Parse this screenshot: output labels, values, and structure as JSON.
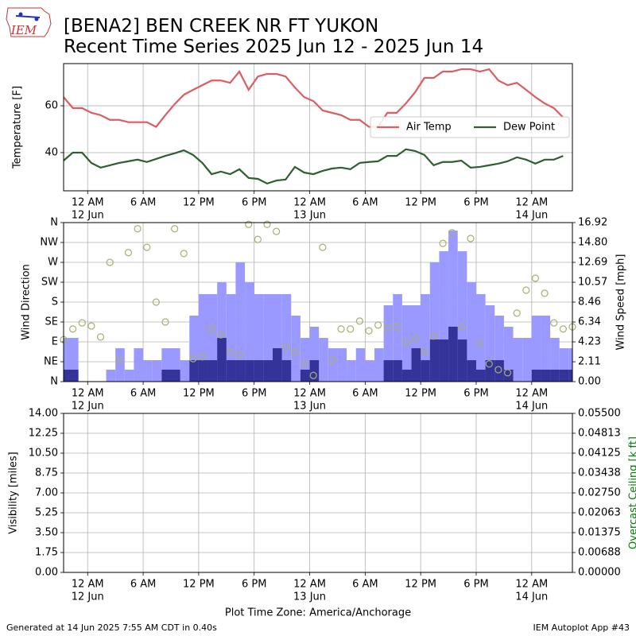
{
  "header": {
    "logo_text": "IEM",
    "title": "[BENA2] BEN CREEK NR FT YUKON",
    "subtitle": "Recent Time Series 2025 Jun 12 - 2025 Jun 14"
  },
  "chart_data": [
    {
      "type": "line",
      "ylabel": "Temperature [F]",
      "xlim": [
        -2.6,
        52.4
      ],
      "xticks": [
        {
          "value": 0,
          "label": "12 AM"
        },
        {
          "value": 6,
          "label": "6 AM"
        },
        {
          "value": 12,
          "label": "12 PM"
        },
        {
          "value": 18,
          "label": "6 PM"
        },
        {
          "value": 24,
          "label": "12 AM"
        },
        {
          "value": 30,
          "label": "6 AM"
        },
        {
          "value": 36,
          "label": "12 PM"
        },
        {
          "value": 42,
          "label": "6 PM"
        },
        {
          "value": 48,
          "label": "12 AM"
        }
      ],
      "xdate_ticks": [
        {
          "value": 0,
          "label": "12 Jun"
        },
        {
          "value": 24,
          "label": "13 Jun"
        },
        {
          "value": 48,
          "label": "14 Jun"
        }
      ],
      "ylim": [
        23.7,
        78
      ],
      "yticks": [
        40,
        60
      ],
      "grid": true,
      "legend": "center right",
      "x": [
        -2.6,
        -1.6,
        -0.6,
        0.4,
        1.4,
        2.4,
        3.4,
        4.4,
        5.4,
        6.4,
        7.4,
        8.4,
        9.4,
        10.4,
        11.4,
        12.4,
        13.4,
        14.4,
        15.4,
        16.4,
        17.4,
        18.4,
        19.4,
        20.4,
        21.4,
        22.4,
        23.4,
        24.4,
        25.4,
        26.4,
        27.4,
        28.4,
        29.4,
        30.4,
        31.4,
        32.4,
        33.4,
        34.4,
        35.4,
        36.4,
        37.4,
        38.4,
        39.4,
        40.4,
        41.4,
        42.4,
        43.4,
        44.4,
        45.4,
        46.4,
        47.4,
        48.4,
        49.4,
        50.4,
        51.4
      ],
      "series": [
        {
          "name": "Air Temp",
          "color": "#dc5c62",
          "values": [
            63.7,
            59,
            59,
            57,
            56,
            54,
            54,
            53,
            53,
            53,
            51,
            56,
            60.7,
            64.7,
            66.8,
            68.8,
            70.8,
            70.8,
            69.8,
            74.6,
            66.8,
            72.5,
            73.6,
            73.6,
            72.5,
            67.8,
            63.7,
            62,
            58,
            57,
            56,
            54,
            54,
            51,
            51,
            57,
            57,
            61,
            65.8,
            71.9,
            71.9,
            74.6,
            74.6,
            75.6,
            75.6,
            74.6,
            75.6,
            70.8,
            68.8,
            69.8,
            66.8,
            63.7,
            61,
            59,
            55
          ]
        },
        {
          "name": "Dew Point",
          "color": "#2f5f2f",
          "values": [
            36.6,
            40,
            40,
            35.6,
            33.6,
            34.6,
            35.6,
            36.3,
            37,
            36,
            37.3,
            38.6,
            39.7,
            41,
            39,
            35.6,
            30.8,
            31.9,
            30.8,
            32.9,
            29.2,
            28.8,
            26.8,
            28.1,
            28.5,
            33.9,
            31.5,
            30.8,
            32.2,
            33.2,
            33.6,
            32.9,
            35.6,
            36,
            36.3,
            38.6,
            38.6,
            41.4,
            40.7,
            39,
            34.6,
            36,
            36,
            36.6,
            33.6,
            33.9,
            34.6,
            35.3,
            36.3,
            38,
            37,
            35.3,
            37,
            37,
            38.6
          ]
        }
      ]
    },
    {
      "type": "combo",
      "ylabel": "Wind Direction",
      "y2label": "Wind Speed [mph]",
      "xlim": [
        -2.6,
        52.4
      ],
      "xticks": [
        {
          "value": 0,
          "label": "12 AM"
        },
        {
          "value": 6,
          "label": "6 AM"
        },
        {
          "value": 12,
          "label": "12 PM"
        },
        {
          "value": 18,
          "label": "6 PM"
        },
        {
          "value": 24,
          "label": "12 AM"
        },
        {
          "value": 30,
          "label": "6 AM"
        },
        {
          "value": 36,
          "label": "12 PM"
        },
        {
          "value": 42,
          "label": "6 PM"
        },
        {
          "value": 48,
          "label": "12 AM"
        }
      ],
      "xdate_ticks": [
        {
          "value": 0,
          "label": "12 Jun"
        },
        {
          "value": 24,
          "label": "13 Jun"
        },
        {
          "value": 48,
          "label": "14 Jun"
        }
      ],
      "ylim": [
        0,
        360
      ],
      "yticks": [
        {
          "value": 0,
          "label": "N"
        },
        {
          "value": 45,
          "label": "NE"
        },
        {
          "value": 90,
          "label": "E"
        },
        {
          "value": 135,
          "label": "SE"
        },
        {
          "value": 180,
          "label": "S"
        },
        {
          "value": 225,
          "label": "SW"
        },
        {
          "value": 270,
          "label": "W"
        },
        {
          "value": 315,
          "label": "NW"
        },
        {
          "value": 360,
          "label": "N"
        }
      ],
      "y2lim": [
        0,
        16.92
      ],
      "y2ticks": [
        {
          "value": 0,
          "label": "0.00"
        },
        2.11,
        4.23,
        6.34,
        8.46,
        10.57,
        12.69,
        {
          "value": 14.8,
          "label": "14.80"
        },
        16.92
      ],
      "grid": true,
      "series": [
        {
          "type": "bar",
          "axis": "y2",
          "color": "#9999ff",
          "x": [
            -3,
            -2,
            -1,
            0,
            1,
            2,
            3,
            4,
            5,
            6,
            7,
            8,
            9,
            10,
            11,
            12,
            13,
            14,
            15,
            16,
            17,
            18,
            19,
            20,
            21,
            22,
            23,
            24,
            25,
            26,
            27,
            28,
            29,
            30,
            31,
            32,
            33,
            34,
            35,
            36,
            37,
            38,
            39,
            40,
            41,
            42,
            43,
            44,
            45,
            46,
            47,
            48,
            49,
            50,
            51,
            52
          ],
          "values": [
            4.65,
            4.65,
            0,
            0,
            0,
            1.27,
            3.55,
            1.27,
            3.55,
            2.28,
            2.28,
            3.55,
            3.55,
            2.28,
            7.02,
            9.31,
            9.31,
            10.57,
            9.31,
            12.69,
            10.57,
            9.31,
            9.31,
            9.31,
            9.31,
            7.02,
            4.65,
            5.84,
            4.65,
            3.55,
            3.55,
            2.28,
            3.55,
            2.28,
            3.55,
            8.12,
            9.31,
            8.12,
            8.12,
            9.31,
            12.69,
            13.87,
            16.07,
            13.87,
            10.57,
            9.31,
            8.12,
            7.02,
            5.84,
            4.65,
            4.65,
            7.02,
            7.02,
            4.65,
            3.55,
            3.55
          ]
        },
        {
          "type": "bar",
          "axis": "y2",
          "color": "#333399",
          "x": [
            -3,
            -2,
            -1,
            0,
            1,
            2,
            3,
            4,
            5,
            6,
            7,
            8,
            9,
            10,
            11,
            12,
            13,
            14,
            15,
            16,
            17,
            18,
            19,
            20,
            21,
            22,
            23,
            24,
            25,
            26,
            27,
            28,
            29,
            30,
            31,
            32,
            33,
            34,
            35,
            36,
            37,
            38,
            39,
            40,
            41,
            42,
            43,
            44,
            45,
            46,
            47,
            48,
            49,
            50,
            51,
            52
          ],
          "values": [
            1.27,
            1.27,
            0,
            0,
            0,
            0,
            0,
            0,
            0,
            0,
            0,
            1.27,
            1.27,
            0,
            2.28,
            2.28,
            2.28,
            4.65,
            2.28,
            2.28,
            2.28,
            2.28,
            2.28,
            3.55,
            2.28,
            0,
            1.27,
            2.28,
            0,
            0,
            0,
            0,
            0,
            0,
            0,
            2.28,
            2.28,
            1.27,
            3.55,
            2.28,
            4.48,
            4.48,
            5.84,
            4.48,
            2.28,
            1.27,
            2.28,
            2.28,
            1.27,
            0,
            0,
            1.27,
            1.27,
            1.27,
            1.27,
            1.27
          ]
        },
        {
          "type": "scatter",
          "color": "#a9ae6e",
          "x": [
            -2.6,
            -1.6,
            -0.6,
            0.4,
            1.4,
            2.4,
            3.4,
            4.4,
            5.4,
            6.4,
            7.4,
            8.4,
            9.4,
            10.4,
            11.4,
            12.4,
            13.4,
            14.4,
            15.4,
            16.4,
            17.4,
            18.4,
            19.4,
            20.4,
            21.4,
            22.4,
            23.4,
            24.4,
            25.4,
            26.4,
            27.4,
            28.4,
            29.4,
            30.4,
            31.4,
            32.4,
            33.4,
            34.4,
            35.4,
            36.4,
            37.4,
            38.4,
            39.4,
            40.4,
            41.4,
            42.4,
            43.4,
            44.4,
            45.4,
            46.4,
            47.4,
            48.4,
            49.4,
            50.4,
            51.4,
            52.4
          ],
          "values": [
            95,
            119,
            133,
            126,
            101,
            270,
            49,
            292,
            346,
            304,
            180,
            135,
            346,
            290,
            52,
            56,
            119,
            106,
            68,
            61,
            356,
            322,
            356,
            340,
            79,
            67,
            40,
            14,
            304,
            49,
            119,
            119,
            137,
            115,
            128,
            122,
            124,
            90,
            97,
            68,
            103,
            313,
            337,
            124,
            324,
            86,
            40,
            27,
            20,
            155,
            207,
            234,
            200,
            133,
            119,
            124
          ]
        }
      ]
    },
    {
      "type": "line",
      "ylabel": "Visibility [miles]",
      "y2label": "Overcast Ceiling [k ft]",
      "y2label_color": "green",
      "xlabel": "Plot Time Zone: America/Anchorage",
      "xlim": [
        -2.6,
        52.4
      ],
      "xticks": [
        {
          "value": 0,
          "label": "12 AM"
        },
        {
          "value": 6,
          "label": "6 AM"
        },
        {
          "value": 12,
          "label": "12 PM"
        },
        {
          "value": 18,
          "label": "6 PM"
        },
        {
          "value": 24,
          "label": "12 AM"
        },
        {
          "value": 30,
          "label": "6 AM"
        },
        {
          "value": 36,
          "label": "12 PM"
        },
        {
          "value": 42,
          "label": "6 PM"
        },
        {
          "value": 48,
          "label": "12 AM"
        }
      ],
      "xdate_ticks": [
        {
          "value": 0,
          "label": "12 Jun"
        },
        {
          "value": 24,
          "label": "13 Jun"
        },
        {
          "value": 48,
          "label": "14 Jun"
        }
      ],
      "ylim": [
        0,
        14
      ],
      "yticks": [
        {
          "value": 0,
          "label": "0.00"
        },
        {
          "value": 1.75,
          "label": "1.75"
        },
        {
          "value": 3.5,
          "label": "3.50"
        },
        {
          "value": 5.25,
          "label": "5.25"
        },
        {
          "value": 7,
          "label": "7.00"
        },
        {
          "value": 8.75,
          "label": "8.75"
        },
        {
          "value": 10.5,
          "label": "10.50"
        },
        {
          "value": 12.25,
          "label": "12.25"
        },
        {
          "value": 14,
          "label": "14.00"
        }
      ],
      "y2lim": [
        0,
        0.055
      ],
      "y2ticks": [
        {
          "value": 0,
          "label": "0.00000"
        },
        {
          "value": 0.00688,
          "label": "0.00688"
        },
        {
          "value": 0.01375,
          "label": "0.01375"
        },
        {
          "value": 0.02063,
          "label": "0.02063"
        },
        {
          "value": 0.0275,
          "label": "0.02750"
        },
        {
          "value": 0.03438,
          "label": "0.03438"
        },
        {
          "value": 0.04125,
          "label": "0.04125"
        },
        {
          "value": 0.04813,
          "label": "0.04813"
        },
        {
          "value": 0.055,
          "label": "0.05500"
        }
      ],
      "grid": true,
      "series": []
    }
  ],
  "footer": {
    "left": "Generated at 14 Jun 2025 7:55 AM CDT in 0.40s",
    "right": "IEM Autoplot App #43"
  }
}
